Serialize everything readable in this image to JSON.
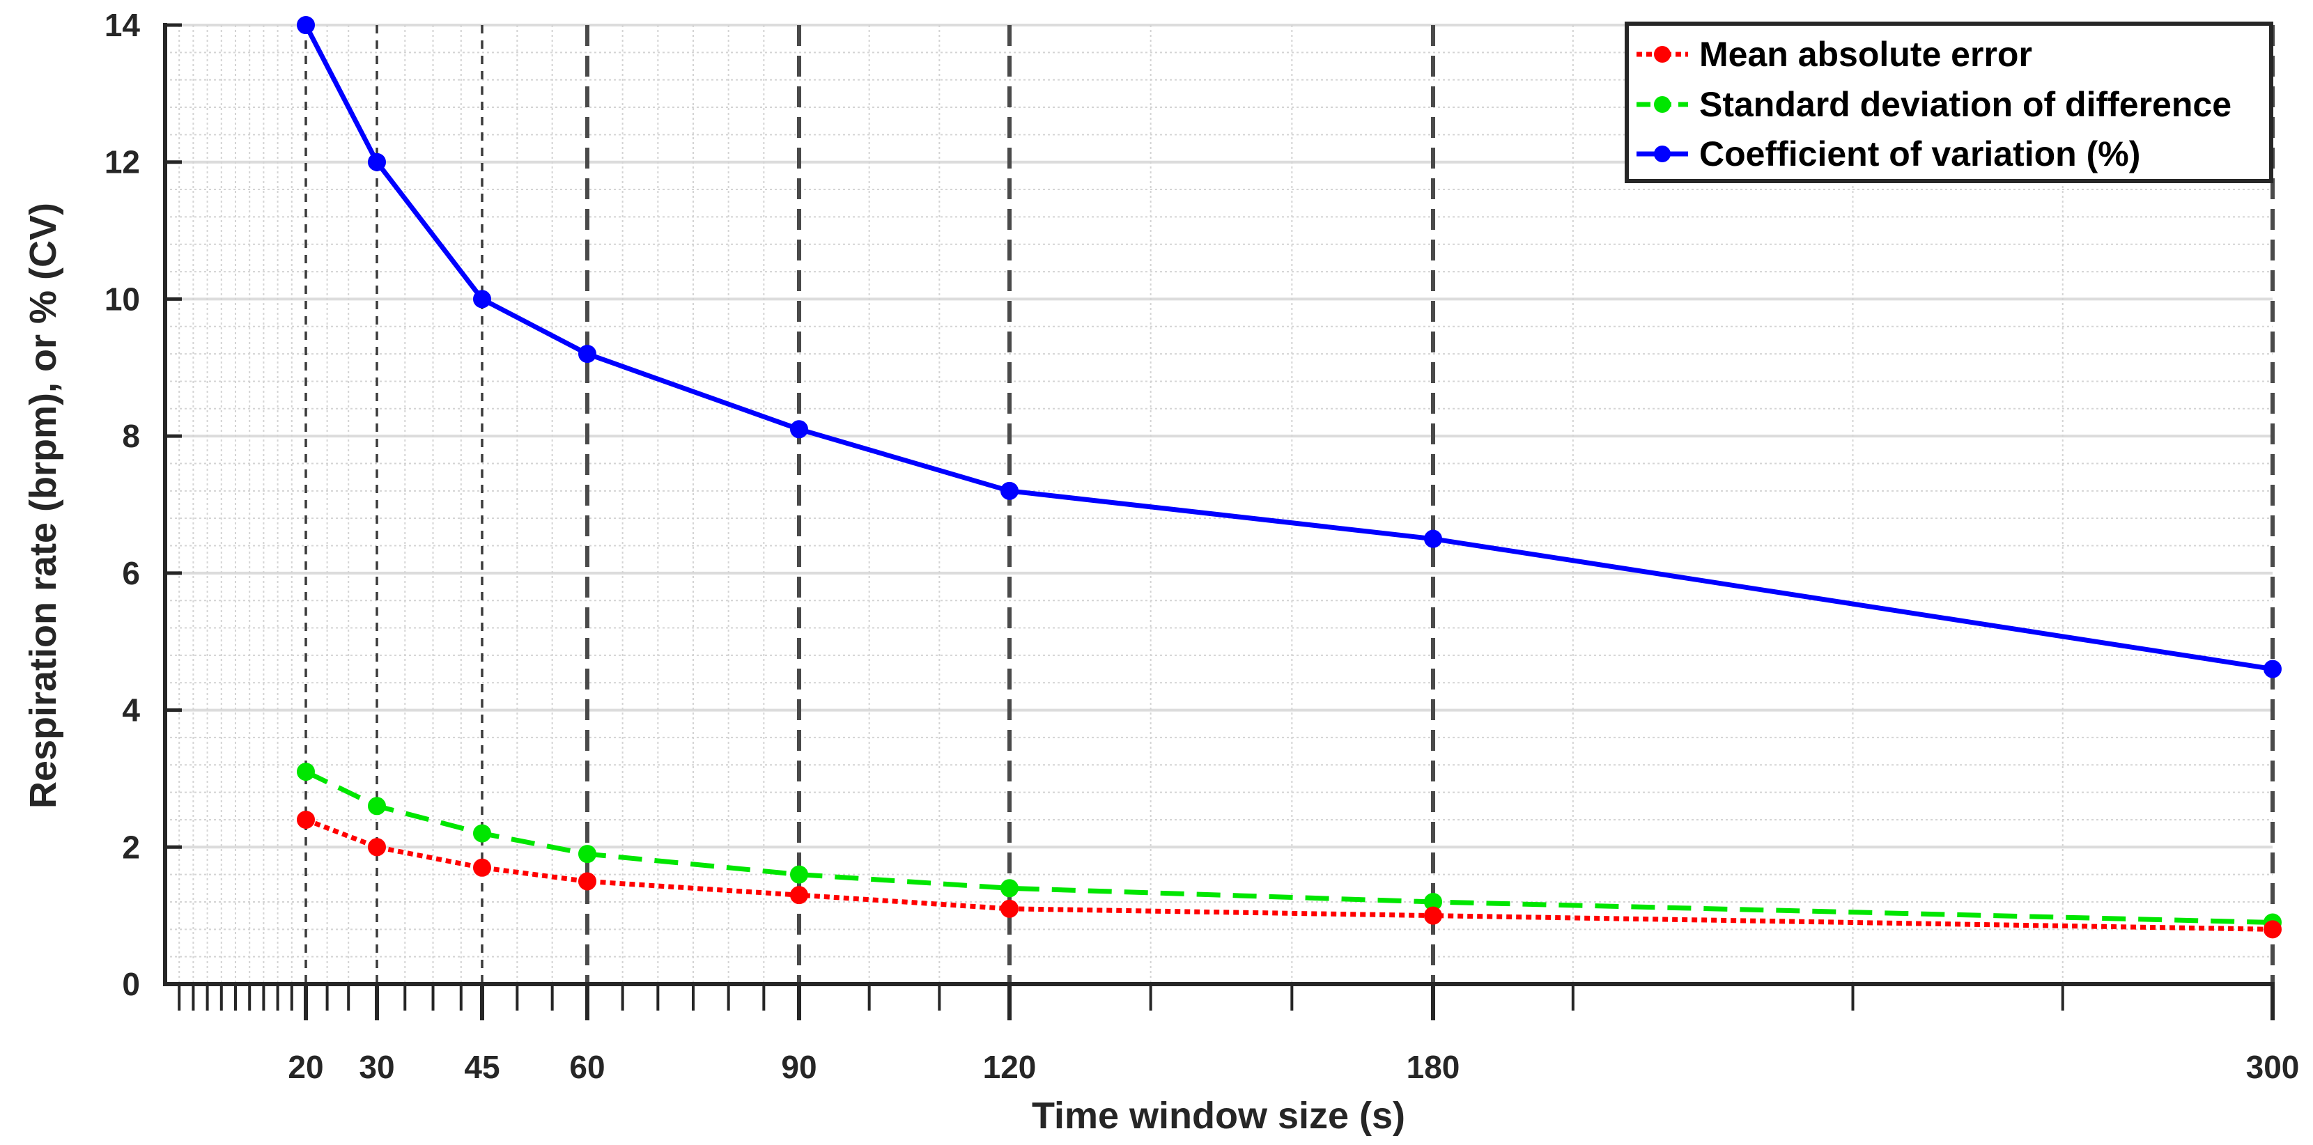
{
  "chart_data": {
    "type": "line",
    "xlabel": "Time window size (s)",
    "ylabel": "Respiration rate (brpm), or % (CV)",
    "xlim": [
      0,
      300
    ],
    "ylim": [
      0,
      14
    ],
    "x_scale": "non-linear (log-like spacing)",
    "x_ticks": [
      20,
      30,
      45,
      60,
      90,
      120,
      180,
      300
    ],
    "x_tick_labels": [
      "20",
      "30",
      "45",
      "60",
      "90",
      "120",
      "180",
      "300"
    ],
    "y_ticks": [
      0,
      2,
      4,
      6,
      8,
      10,
      12,
      14
    ],
    "y_tick_labels": [
      "0",
      "2",
      "4",
      "6",
      "8",
      "10",
      "12",
      "14"
    ],
    "grid": true,
    "legend_position": "top-right",
    "x": [
      20,
      30,
      45,
      60,
      90,
      120,
      180,
      300
    ],
    "series": [
      {
        "name": "Mean absolute error",
        "color": "#ff0000",
        "line_style": "dotted",
        "values": [
          2.4,
          2.0,
          1.7,
          1.5,
          1.3,
          1.1,
          1.0,
          0.8
        ]
      },
      {
        "name": "Standard deviation of difference",
        "color": "#00e600",
        "line_style": "dashed",
        "values": [
          3.1,
          2.6,
          2.2,
          1.9,
          1.6,
          1.4,
          1.2,
          0.9
        ]
      },
      {
        "name": "Coefficient of variation (%)",
        "color": "#0000ff",
        "line_style": "solid",
        "values": [
          14.0,
          12.0,
          10.0,
          9.2,
          8.1,
          7.2,
          6.5,
          4.6
        ]
      }
    ]
  }
}
